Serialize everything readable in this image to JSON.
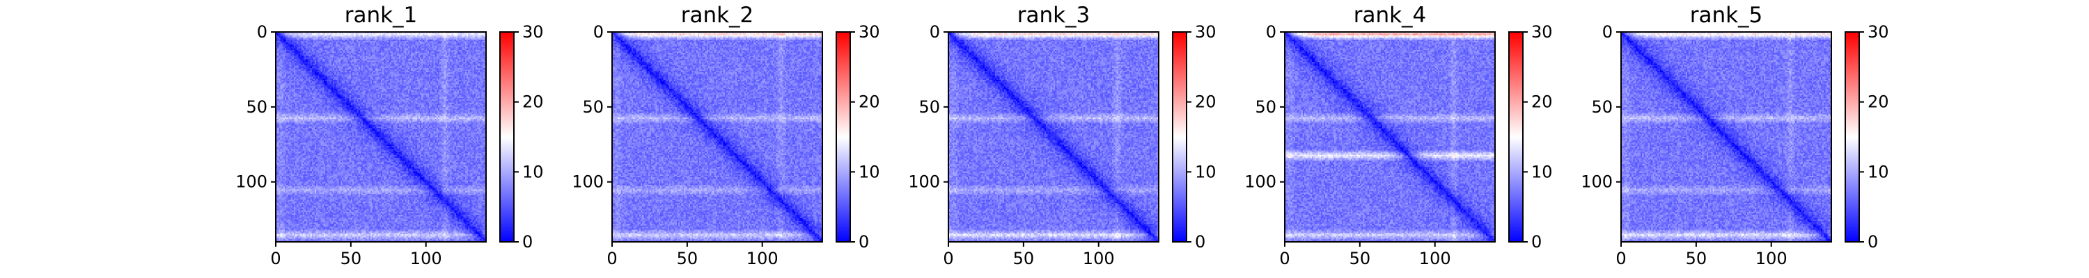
{
  "chart_data": [
    {
      "type": "heatmap",
      "title": "rank_1",
      "n": 140,
      "x_ticks": [
        0,
        50,
        100
      ],
      "y_ticks": [
        0,
        50,
        100
      ],
      "colorbar": {
        "min": 0,
        "max": 30,
        "ticks": [
          0,
          10,
          20,
          30
        ],
        "colormap": "bwr"
      },
      "background_level": 7,
      "diagonal_level": 1,
      "bright_rows": [
        {
          "index": 1,
          "level": 14
        },
        {
          "index": 57,
          "level": 11
        },
        {
          "index": 105,
          "level": 10
        },
        {
          "index": 135,
          "level": 12
        }
      ],
      "bright_cols": [
        {
          "index": 3,
          "level": 9
        },
        {
          "index": 112,
          "level": 10
        }
      ]
    },
    {
      "type": "heatmap",
      "title": "rank_2",
      "n": 140,
      "x_ticks": [
        0,
        50,
        100
      ],
      "y_ticks": [
        0,
        50,
        100
      ],
      "colorbar": {
        "min": 0,
        "max": 30,
        "ticks": [
          0,
          10,
          20,
          30
        ],
        "colormap": "bwr"
      },
      "background_level": 7,
      "diagonal_level": 1,
      "bright_rows": [
        {
          "index": 1,
          "level": 17
        },
        {
          "index": 57,
          "level": 11
        },
        {
          "index": 105,
          "level": 10
        },
        {
          "index": 135,
          "level": 12
        }
      ],
      "bright_cols": [
        {
          "index": 3,
          "level": 9
        },
        {
          "index": 112,
          "level": 10
        }
      ]
    },
    {
      "type": "heatmap",
      "title": "rank_3",
      "n": 140,
      "x_ticks": [
        0,
        50,
        100
      ],
      "y_ticks": [
        0,
        50,
        100
      ],
      "colorbar": {
        "min": 0,
        "max": 30,
        "ticks": [
          0,
          10,
          20,
          30
        ],
        "colormap": "bwr"
      },
      "background_level": 7,
      "diagonal_level": 1,
      "bright_rows": [
        {
          "index": 1,
          "level": 17
        },
        {
          "index": 57,
          "level": 11
        },
        {
          "index": 105,
          "level": 10
        },
        {
          "index": 135,
          "level": 13
        }
      ],
      "bright_cols": [
        {
          "index": 3,
          "level": 9
        },
        {
          "index": 112,
          "level": 10
        }
      ]
    },
    {
      "type": "heatmap",
      "title": "rank_4",
      "n": 140,
      "x_ticks": [
        0,
        50,
        100
      ],
      "y_ticks": [
        0,
        50,
        100
      ],
      "colorbar": {
        "min": 0,
        "max": 30,
        "ticks": [
          0,
          10,
          20,
          30
        ],
        "colormap": "bwr"
      },
      "background_level": 7,
      "diagonal_level": 1,
      "bright_rows": [
        {
          "index": 1,
          "level": 20
        },
        {
          "index": 57,
          "level": 11
        },
        {
          "index": 82,
          "level": 14
        },
        {
          "index": 135,
          "level": 12
        }
      ],
      "bright_cols": [
        {
          "index": 3,
          "level": 9
        },
        {
          "index": 112,
          "level": 10
        }
      ]
    },
    {
      "type": "heatmap",
      "title": "rank_5",
      "n": 140,
      "x_ticks": [
        0,
        50,
        100
      ],
      "y_ticks": [
        0,
        50,
        100
      ],
      "colorbar": {
        "min": 0,
        "max": 30,
        "ticks": [
          0,
          10,
          20,
          30
        ],
        "colormap": "bwr"
      },
      "background_level": 7,
      "diagonal_level": 1,
      "bright_rows": [
        {
          "index": 1,
          "level": 16
        },
        {
          "index": 57,
          "level": 11
        },
        {
          "index": 105,
          "level": 10
        },
        {
          "index": 135,
          "level": 13
        }
      ],
      "bright_cols": [
        {
          "index": 3,
          "level": 9
        },
        {
          "index": 112,
          "level": 10
        }
      ]
    }
  ]
}
